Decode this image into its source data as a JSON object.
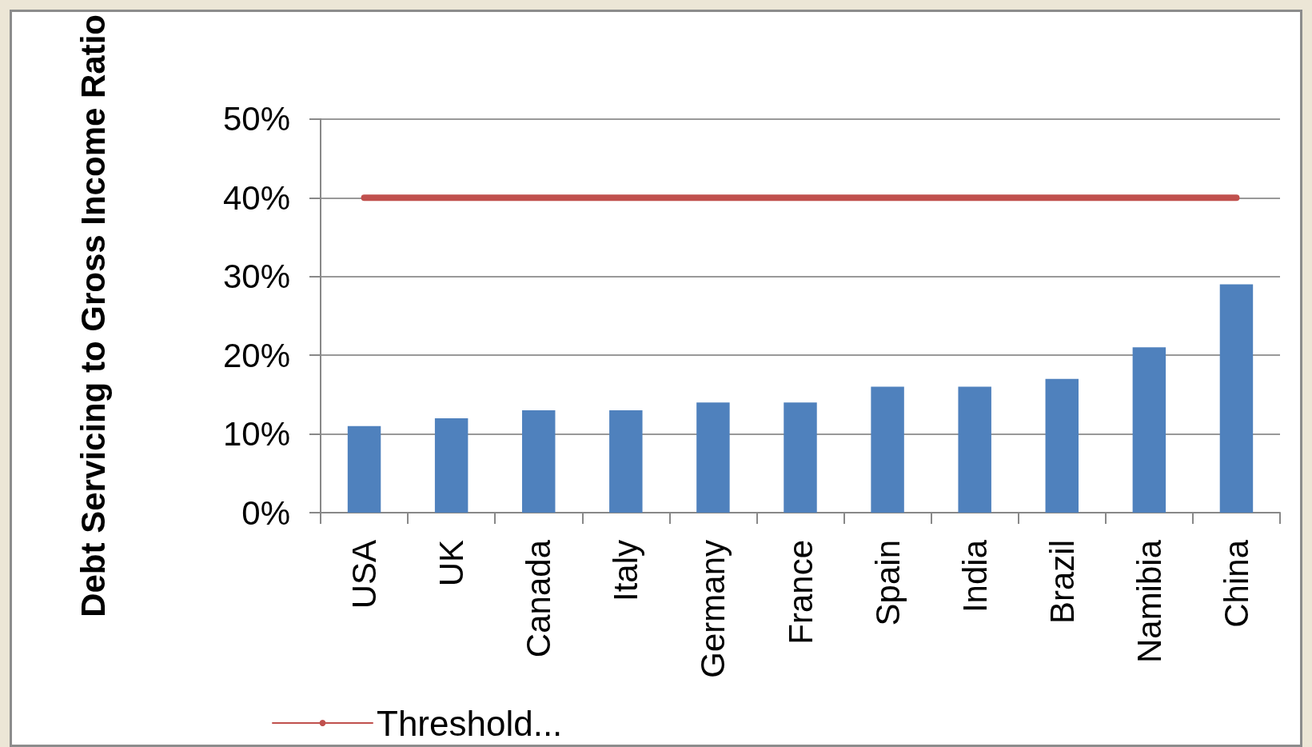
{
  "chart_data": {
    "type": "bar",
    "ylabel": "Debt Servicing to Gross Income Ratio",
    "categories": [
      "USA",
      "UK",
      "Canada",
      "Italy",
      "Germany",
      "France",
      "Spain",
      "India",
      "Brazil",
      "Namibia",
      "China"
    ],
    "series": [
      {
        "color": "#4f81bd",
        "values": [
          11,
          12,
          13,
          13,
          14,
          14,
          16,
          16,
          17,
          21,
          29
        ]
      },
      {
        "name": "Threshold...",
        "type": "line",
        "color": "#c0504d",
        "values": [
          40,
          40,
          40,
          40,
          40,
          40,
          40,
          40,
          40,
          40,
          40
        ]
      }
    ],
    "ylim": [
      0,
      50
    ],
    "yticks": [
      {
        "value": 0,
        "label": "0%"
      },
      {
        "value": 10,
        "label": "10%"
      },
      {
        "value": 20,
        "label": "20%"
      },
      {
        "value": 30,
        "label": "30%"
      },
      {
        "value": 40,
        "label": "40%"
      },
      {
        "value": 50,
        "label": "50%"
      }
    ],
    "grid": "y",
    "legend": "bottom left",
    "marker": "none",
    "line_style": "solid"
  }
}
